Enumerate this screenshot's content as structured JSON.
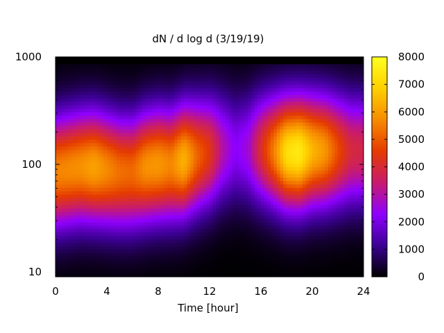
{
  "chart_data": {
    "type": "heatmap",
    "title": "dN / d log d (3/19/19)",
    "xlabel": "Time [hour]",
    "ylabel": "",
    "x_range": [
      0,
      24
    ],
    "x_ticks": [
      0,
      4,
      8,
      12,
      16,
      20,
      24
    ],
    "y_range": [
      9,
      1000
    ],
    "y_scale": "log",
    "y_ticks": [
      10,
      100,
      1000
    ],
    "z_range": [
      0,
      8000
    ],
    "colorbar_ticks": [
      0,
      1000,
      2000,
      3000,
      4000,
      5000,
      6000,
      7000,
      8000
    ],
    "colormap": [
      "#000000",
      "#3c0094",
      "#8f00ff",
      "#c81b6e",
      "#e53b00",
      "#f78b00",
      "#ffd000",
      "#ffff20"
    ],
    "grid": false,
    "mode_diameter_by_hour": {
      "x": [
        0,
        1,
        2,
        3,
        4,
        5,
        6,
        7,
        8,
        9,
        10,
        11,
        12,
        13,
        14,
        15,
        16,
        17,
        18,
        19,
        20,
        21,
        22,
        23,
        24
      ],
      "y": [
        85,
        90,
        95,
        95,
        90,
        85,
        85,
        95,
        100,
        100,
        110,
        120,
        130,
        140,
        140,
        140,
        140,
        135,
        130,
        130,
        135,
        135,
        135,
        135,
        135
      ]
    },
    "peak_concentration_by_hour": {
      "x": [
        0,
        1,
        2,
        3,
        4,
        5,
        6,
        7,
        8,
        9,
        10,
        11,
        12,
        13,
        14,
        15,
        16,
        17,
        18,
        19,
        20,
        21,
        22,
        23,
        24
      ],
      "z": [
        5600,
        5700,
        5800,
        6100,
        5700,
        5300,
        5200,
        5800,
        5900,
        5600,
        6400,
        5200,
        4400,
        3000,
        2200,
        2600,
        4100,
        5500,
        7200,
        7500,
        6400,
        5900,
        4800,
        3900,
        3800
      ]
    }
  }
}
